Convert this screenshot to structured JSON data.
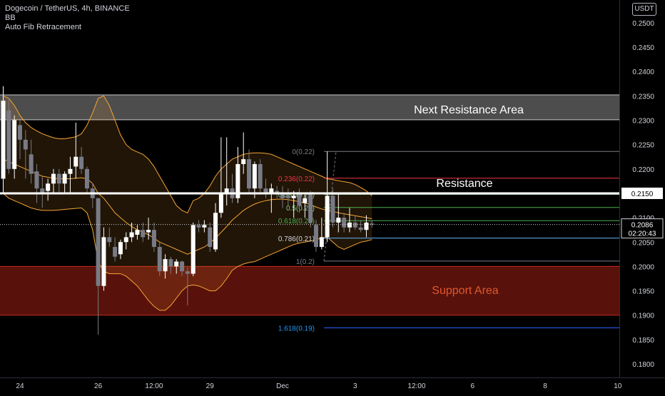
{
  "header": {
    "title": "Dogecoin / TetherUS, 4h, BINANCE",
    "indicator_1": "BB",
    "indicator_2": "Auto Fib Retracement"
  },
  "currency_button": "USDT",
  "colors": {
    "background": "#000000",
    "bull_candle": "#ffffff",
    "bear_candle": "#787b86",
    "bb_band": "#f7a534",
    "bb_fill": "#f7a534",
    "resistance_zone": "#5b5b5b",
    "support_zone": "#8e1c12",
    "support_text": "#e0582b",
    "fib_0": "#787b86",
    "fib_0236": "#f23645",
    "fib_0382": "#81c784",
    "fib_0618": "#4caf50",
    "fib_0786": "#64b5f6",
    "fib_1": "#787b86",
    "fib_1618": "#2962ff"
  },
  "chart_data": {
    "type": "candlestick",
    "symbol": "Dogecoin / TetherUS",
    "interval": "4h",
    "exchange": "BINANCE",
    "y_axis": {
      "range": [
        0.1765,
        0.2555
      ],
      "ticks": [
        "0.2500",
        "0.2450",
        "0.2400",
        "0.2350",
        "0.2300",
        "0.2250",
        "0.2200",
        "0.2150",
        "0.2100",
        "0.2050",
        "0.2000",
        "0.1950",
        "0.1900",
        "0.1850",
        "0.1800"
      ]
    },
    "x_axis": {
      "tick_labels": [
        "24",
        "26",
        "12:00",
        "29",
        "Dec",
        "3",
        "12:00",
        "6",
        "8",
        "10"
      ],
      "tick_bars": [
        3,
        17,
        27,
        37,
        50,
        63,
        74,
        84,
        97,
        110
      ]
    },
    "last_price": "0.2086",
    "countdown": "02:20:43",
    "resistance_level": {
      "label": "Resistance",
      "price": 0.215,
      "price_label": "0.2150"
    },
    "zones": [
      {
        "label": "Next Resistance Area",
        "top": 0.2352,
        "bottom": 0.2301
      },
      {
        "label": "Support Area",
        "top": 0.2,
        "bottom": 0.19
      }
    ],
    "fib_levels": [
      {
        "ratio": "0",
        "price": 0.2236,
        "label": "0(0.22)"
      },
      {
        "ratio": "0.236",
        "price": 0.2181,
        "label": "0.236(0.22)"
      },
      {
        "ratio": "0.382",
        "price": 0.2148,
        "label": "0.382(0.21)"
      },
      {
        "ratio": "0.5",
        "price": 0.2121,
        "label": "0.5(0.21)"
      },
      {
        "ratio": "0.618",
        "price": 0.2094,
        "label": "0.618(0.21)"
      },
      {
        "ratio": "0.786",
        "price": 0.2058,
        "label": "0.786(0.21)"
      },
      {
        "ratio": "1",
        "price": 0.2011,
        "label": "1(0.2)"
      },
      {
        "ratio": "1.618",
        "price": 0.1874,
        "label": "1.618(0.19)"
      }
    ],
    "candles": [
      {
        "o": 0.218,
        "h": 0.237,
        "l": 0.215,
        "c": 0.234
      },
      {
        "o": 0.232,
        "h": 0.2345,
        "l": 0.219,
        "c": 0.22
      },
      {
        "o": 0.22,
        "h": 0.231,
        "l": 0.218,
        "c": 0.23
      },
      {
        "o": 0.229,
        "h": 0.23,
        "l": 0.222,
        "c": 0.226
      },
      {
        "o": 0.226,
        "h": 0.228,
        "l": 0.218,
        "c": 0.224
      },
      {
        "o": 0.223,
        "h": 0.226,
        "l": 0.217,
        "c": 0.219
      },
      {
        "o": 0.2195,
        "h": 0.221,
        "l": 0.213,
        "c": 0.216
      },
      {
        "o": 0.216,
        "h": 0.2185,
        "l": 0.212,
        "c": 0.215
      },
      {
        "o": 0.2155,
        "h": 0.218,
        "l": 0.2135,
        "c": 0.217
      },
      {
        "o": 0.217,
        "h": 0.22,
        "l": 0.215,
        "c": 0.219
      },
      {
        "o": 0.219,
        "h": 0.22,
        "l": 0.215,
        "c": 0.217
      },
      {
        "o": 0.217,
        "h": 0.2195,
        "l": 0.215,
        "c": 0.219
      },
      {
        "o": 0.219,
        "h": 0.2225,
        "l": 0.215,
        "c": 0.22
      },
      {
        "o": 0.2205,
        "h": 0.2295,
        "l": 0.218,
        "c": 0.2225
      },
      {
        "o": 0.2225,
        "h": 0.2245,
        "l": 0.219,
        "c": 0.22
      },
      {
        "o": 0.22,
        "h": 0.2205,
        "l": 0.215,
        "c": 0.216
      },
      {
        "o": 0.216,
        "h": 0.217,
        "l": 0.212,
        "c": 0.214
      },
      {
        "o": 0.214,
        "h": 0.214,
        "l": 0.186,
        "c": 0.196
      },
      {
        "o": 0.196,
        "h": 0.208,
        "l": 0.195,
        "c": 0.206
      },
      {
        "o": 0.206,
        "h": 0.208,
        "l": 0.204,
        "c": 0.205
      },
      {
        "o": 0.204,
        "h": 0.206,
        "l": 0.201,
        "c": 0.202
      },
      {
        "o": 0.2025,
        "h": 0.2055,
        "l": 0.2015,
        "c": 0.205
      },
      {
        "o": 0.205,
        "h": 0.207,
        "l": 0.2035,
        "c": 0.206
      },
      {
        "o": 0.206,
        "h": 0.209,
        "l": 0.205,
        "c": 0.207
      },
      {
        "o": 0.2065,
        "h": 0.2085,
        "l": 0.2055,
        "c": 0.2075
      },
      {
        "o": 0.2075,
        "h": 0.209,
        "l": 0.205,
        "c": 0.206
      },
      {
        "o": 0.207,
        "h": 0.21,
        "l": 0.2055,
        "c": 0.2075
      },
      {
        "o": 0.2075,
        "h": 0.209,
        "l": 0.203,
        "c": 0.204
      },
      {
        "o": 0.204,
        "h": 0.205,
        "l": 0.198,
        "c": 0.199
      },
      {
        "o": 0.199,
        "h": 0.2025,
        "l": 0.1975,
        "c": 0.2015
      },
      {
        "o": 0.2015,
        "h": 0.202,
        "l": 0.1985,
        "c": 0.2
      },
      {
        "o": 0.2,
        "h": 0.2015,
        "l": 0.1985,
        "c": 0.201
      },
      {
        "o": 0.201,
        "h": 0.2012,
        "l": 0.198,
        "c": 0.199
      },
      {
        "o": 0.199,
        "h": 0.1998,
        "l": 0.192,
        "c": 0.1985
      },
      {
        "o": 0.1985,
        "h": 0.209,
        "l": 0.198,
        "c": 0.2085
      },
      {
        "o": 0.2085,
        "h": 0.2095,
        "l": 0.207,
        "c": 0.208
      },
      {
        "o": 0.208,
        "h": 0.2095,
        "l": 0.207,
        "c": 0.2085
      },
      {
        "o": 0.208,
        "h": 0.209,
        "l": 0.203,
        "c": 0.204
      },
      {
        "o": 0.2035,
        "h": 0.213,
        "l": 0.203,
        "c": 0.211
      },
      {
        "o": 0.211,
        "h": 0.2265,
        "l": 0.21,
        "c": 0.215
      },
      {
        "o": 0.215,
        "h": 0.2265,
        "l": 0.2125,
        "c": 0.216
      },
      {
        "o": 0.216,
        "h": 0.219,
        "l": 0.213,
        "c": 0.214
      },
      {
        "o": 0.214,
        "h": 0.2245,
        "l": 0.213,
        "c": 0.221
      },
      {
        "o": 0.221,
        "h": 0.2275,
        "l": 0.219,
        "c": 0.222
      },
      {
        "o": 0.222,
        "h": 0.224,
        "l": 0.215,
        "c": 0.216
      },
      {
        "o": 0.216,
        "h": 0.2215,
        "l": 0.214,
        "c": 0.221
      },
      {
        "o": 0.221,
        "h": 0.222,
        "l": 0.215,
        "c": 0.216
      },
      {
        "o": 0.216,
        "h": 0.218,
        "l": 0.214,
        "c": 0.215
      },
      {
        "o": 0.215,
        "h": 0.217,
        "l": 0.211,
        "c": 0.216
      },
      {
        "o": 0.2155,
        "h": 0.2165,
        "l": 0.214,
        "c": 0.215
      },
      {
        "o": 0.215,
        "h": 0.2165,
        "l": 0.212,
        "c": 0.214
      },
      {
        "o": 0.2145,
        "h": 0.216,
        "l": 0.2125,
        "c": 0.214
      },
      {
        "o": 0.214,
        "h": 0.2155,
        "l": 0.21,
        "c": 0.2145
      },
      {
        "o": 0.215,
        "h": 0.216,
        "l": 0.211,
        "c": 0.2125
      },
      {
        "o": 0.213,
        "h": 0.215,
        "l": 0.21,
        "c": 0.214
      },
      {
        "o": 0.215,
        "h": 0.2155,
        "l": 0.208,
        "c": 0.209
      },
      {
        "o": 0.2085,
        "h": 0.2095,
        "l": 0.203,
        "c": 0.204
      },
      {
        "o": 0.204,
        "h": 0.21,
        "l": 0.2035,
        "c": 0.206
      },
      {
        "o": 0.206,
        "h": 0.2236,
        "l": 0.205,
        "c": 0.2145
      },
      {
        "o": 0.2145,
        "h": 0.216,
        "l": 0.208,
        "c": 0.209
      },
      {
        "o": 0.209,
        "h": 0.215,
        "l": 0.207,
        "c": 0.21
      },
      {
        "o": 0.21,
        "h": 0.211,
        "l": 0.207,
        "c": 0.208
      },
      {
        "o": 0.208,
        "h": 0.212,
        "l": 0.207,
        "c": 0.209
      },
      {
        "o": 0.209,
        "h": 0.2105,
        "l": 0.2075,
        "c": 0.208
      },
      {
        "o": 0.208,
        "h": 0.2095,
        "l": 0.207,
        "c": 0.2075
      },
      {
        "o": 0.2075,
        "h": 0.2105,
        "l": 0.206,
        "c": 0.209
      },
      {
        "o": 0.2088,
        "h": 0.2095,
        "l": 0.208,
        "c": 0.2086
      }
    ],
    "bollinger": {
      "upper": [
        0.235,
        0.2345,
        0.233,
        0.231,
        0.2295,
        0.2285,
        0.2278,
        0.2272,
        0.2268,
        0.2264,
        0.2262,
        0.2262,
        0.2264,
        0.2266,
        0.2272,
        0.229,
        0.2315,
        0.2345,
        0.235,
        0.233,
        0.23,
        0.227,
        0.225,
        0.224,
        0.2235,
        0.223,
        0.222,
        0.2205,
        0.2185,
        0.2165,
        0.2145,
        0.2125,
        0.2115,
        0.211,
        0.2135,
        0.214,
        0.215,
        0.2165,
        0.2185,
        0.22,
        0.221,
        0.222,
        0.2225,
        0.223,
        0.2232,
        0.2233,
        0.2233,
        0.2232,
        0.223,
        0.2225,
        0.222,
        0.2215,
        0.221,
        0.2205,
        0.22,
        0.2195,
        0.219,
        0.2185,
        0.218,
        0.2178,
        0.2176,
        0.2174,
        0.2172,
        0.2168,
        0.2162,
        0.2155,
        0.2145
      ],
      "middle": [
        0.222,
        0.2215,
        0.221,
        0.2205,
        0.22,
        0.2195,
        0.219,
        0.2185,
        0.2183,
        0.2181,
        0.218,
        0.218,
        0.218,
        0.2181,
        0.2182,
        0.218,
        0.217,
        0.215,
        0.214,
        0.2125,
        0.211,
        0.21,
        0.209,
        0.2082,
        0.2075,
        0.207,
        0.2065,
        0.2058,
        0.205,
        0.2045,
        0.204,
        0.2035,
        0.203,
        0.2025,
        0.203,
        0.2035,
        0.204,
        0.2048,
        0.2058,
        0.207,
        0.2082,
        0.2095,
        0.2105,
        0.2115,
        0.2122,
        0.2128,
        0.2132,
        0.2135,
        0.2137,
        0.2138,
        0.2138,
        0.2137,
        0.2135,
        0.2133,
        0.213,
        0.2127,
        0.2122,
        0.2118,
        0.2115,
        0.2113,
        0.211,
        0.2108,
        0.2106,
        0.2104,
        0.2102,
        0.21,
        0.2098
      ],
      "lower": [
        0.215,
        0.214,
        0.2135,
        0.213,
        0.2125,
        0.212,
        0.2117,
        0.2115,
        0.2115,
        0.2115,
        0.2116,
        0.2117,
        0.2118,
        0.2119,
        0.212,
        0.211,
        0.2075,
        0.201,
        0.199,
        0.1985,
        0.1985,
        0.1985,
        0.198,
        0.197,
        0.196,
        0.1945,
        0.193,
        0.1918,
        0.191,
        0.191,
        0.192,
        0.1935,
        0.195,
        0.196,
        0.1962,
        0.196,
        0.1955,
        0.195,
        0.195,
        0.196,
        0.1975,
        0.1992,
        0.2,
        0.2005,
        0.2008,
        0.201,
        0.2015,
        0.202,
        0.2025,
        0.203,
        0.2035,
        0.204,
        0.2045,
        0.2048,
        0.205,
        0.2052,
        0.2055,
        0.2058,
        0.206,
        0.205,
        0.204,
        0.2035,
        0.204,
        0.2045,
        0.205,
        0.2052,
        0.2055
      ]
    }
  }
}
